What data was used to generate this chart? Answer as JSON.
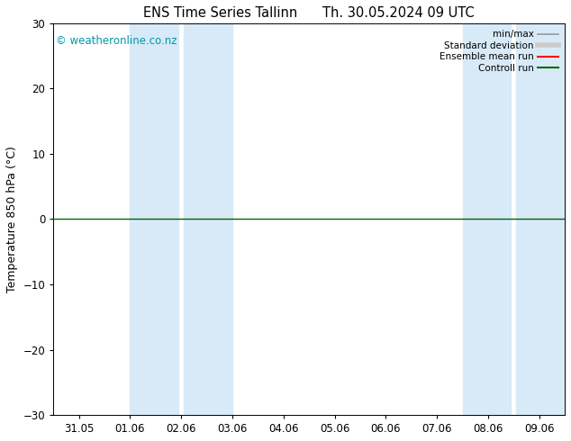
{
  "title": "ENS Time Series Tallinn      Th. 30.05.2024 09 UTC",
  "ylabel": "Temperature 850 hPa (°C)",
  "ylim": [
    -30,
    30
  ],
  "yticks": [
    -30,
    -20,
    -10,
    0,
    10,
    20,
    30
  ],
  "x_labels": [
    "31.05",
    "01.06",
    "02.06",
    "03.06",
    "04.06",
    "05.06",
    "06.06",
    "07.06",
    "08.06",
    "09.06"
  ],
  "x_positions": [
    0,
    1,
    2,
    3,
    4,
    5,
    6,
    7,
    8,
    9
  ],
  "x_min": -0.5,
  "x_max": 9.5,
  "shaded_sub_bands": [
    [
      1.0,
      1.95
    ],
    [
      2.05,
      3.0
    ],
    [
      7.5,
      8.45
    ],
    [
      8.55,
      9.5
    ]
  ],
  "shade_color": "#d8eaf8",
  "zero_line_y": 0,
  "zero_line_color": "#006600",
  "zero_line_lw": 1.0,
  "copyright_text": "© weatheronline.co.nz",
  "copyright_color": "#0099aa",
  "legend_entries": [
    {
      "label": "min/max",
      "color": "#999999",
      "lw": 1.2
    },
    {
      "label": "Standard deviation",
      "color": "#cccccc",
      "lw": 4.0
    },
    {
      "label": "Ensemble mean run",
      "color": "#ff0000",
      "lw": 1.5
    },
    {
      "label": "Controll run",
      "color": "#006600",
      "lw": 1.5
    }
  ],
  "background_color": "#ffffff",
  "plot_bg_color": "#ffffff",
  "title_fontsize": 10.5,
  "axis_label_fontsize": 9,
  "tick_fontsize": 8.5,
  "legend_fontsize": 7.5,
  "copyright_fontsize": 8.5
}
